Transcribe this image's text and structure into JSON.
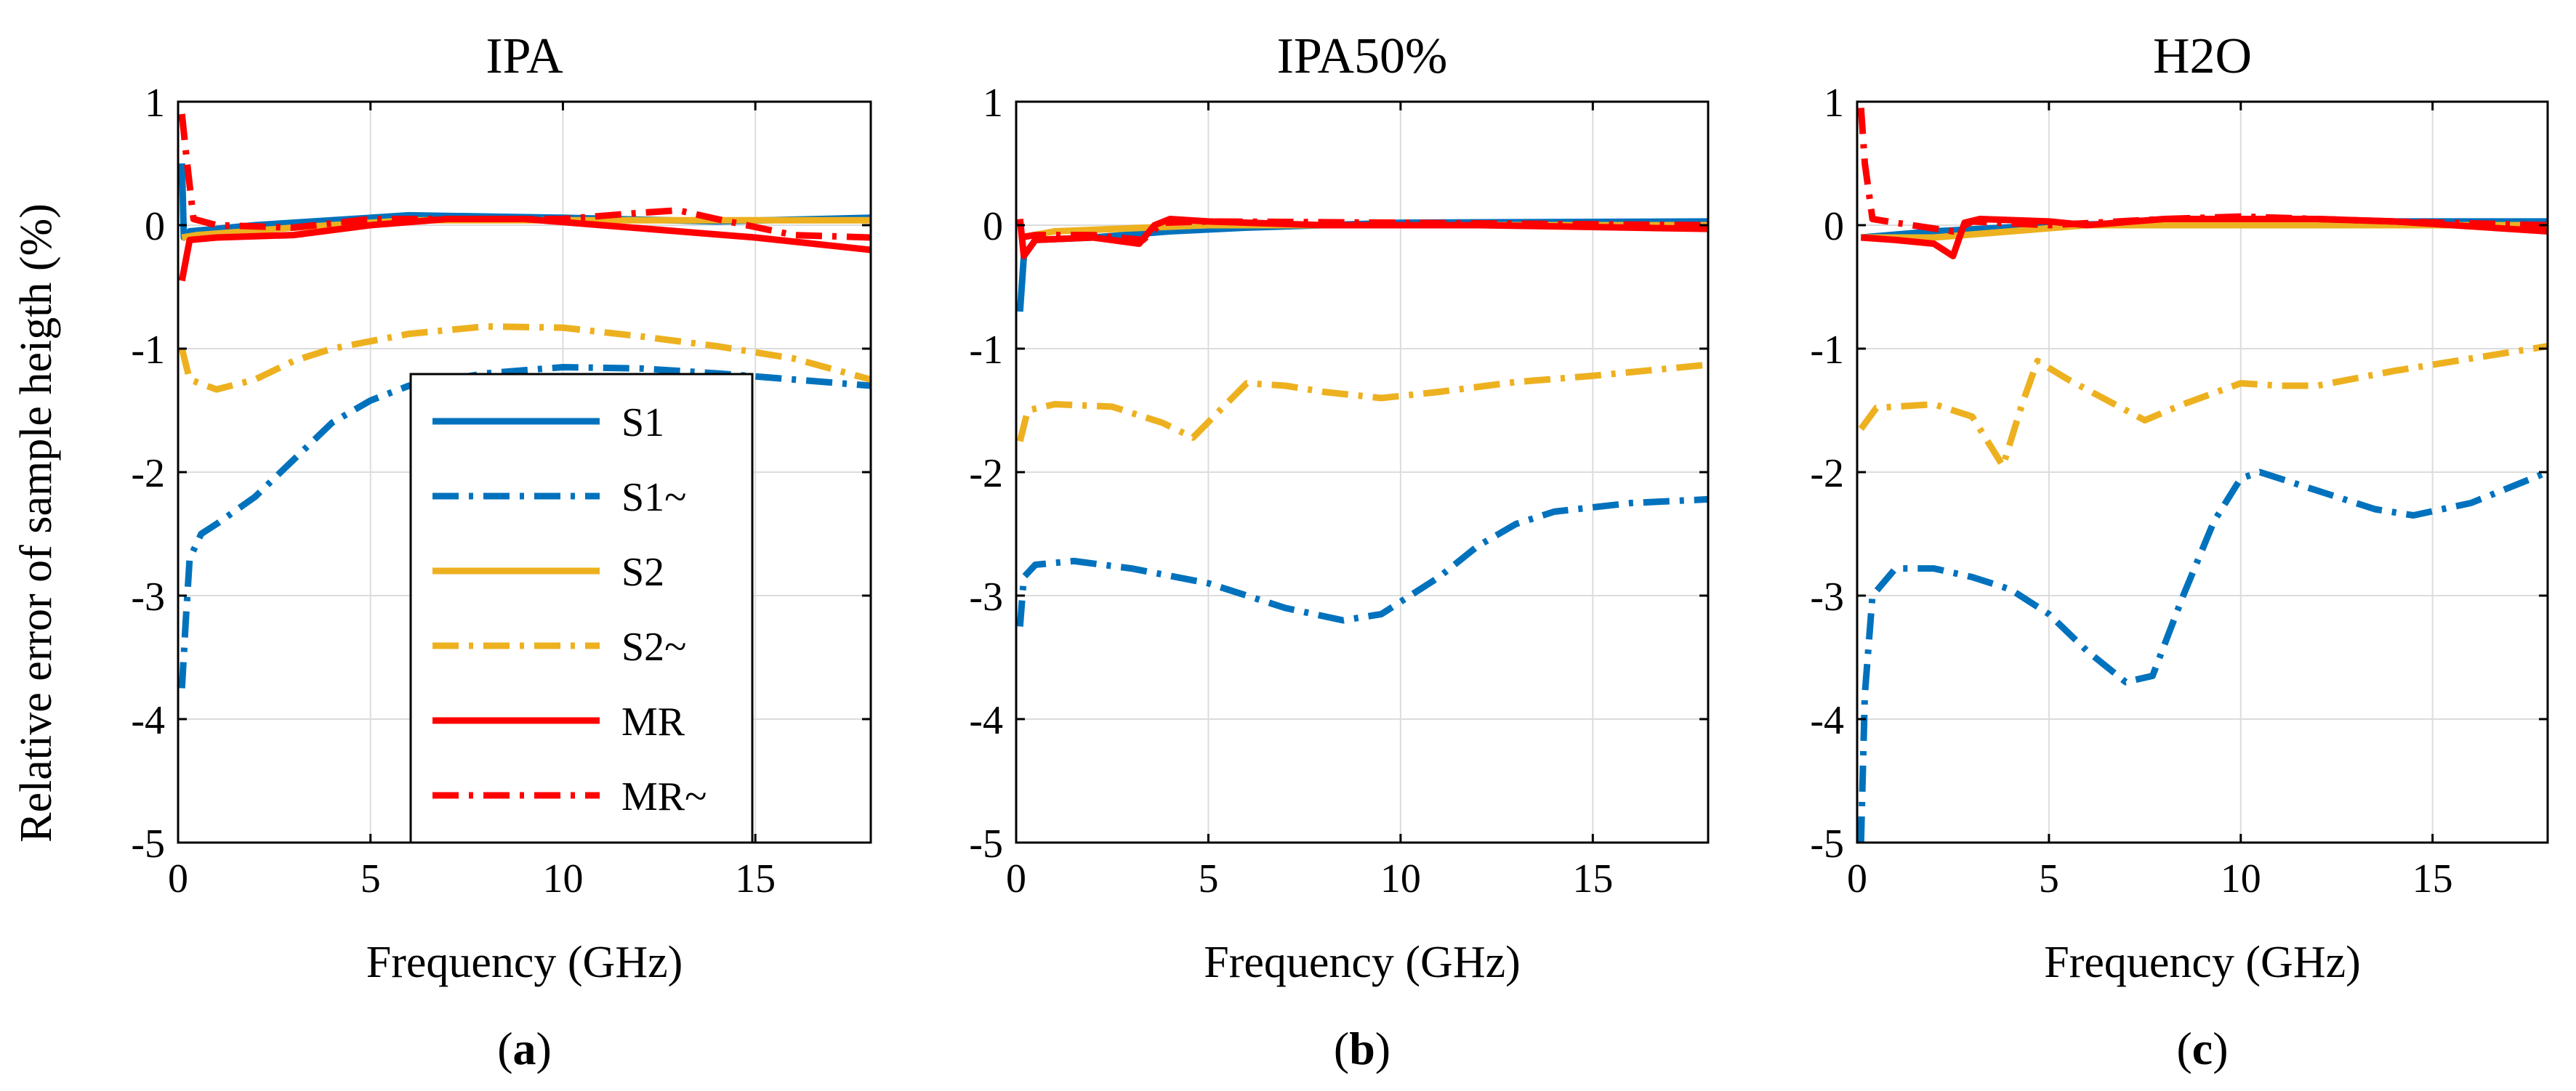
{
  "figure": {
    "ylabel": "Relative error of sample heigth (%)",
    "xlabel": "Frequency (GHz)"
  },
  "legend": {
    "location": "lower-center of panel (a)",
    "entries": [
      {
        "label": "S1",
        "color": "#0072BD",
        "dash": "solid"
      },
      {
        "label": "S1~",
        "color": "#0072BD",
        "dash": "dashdot"
      },
      {
        "label": "S2",
        "color": "#EDB120",
        "dash": "solid"
      },
      {
        "label": "S2~",
        "color": "#EDB120",
        "dash": "dashdot"
      },
      {
        "label": "MR",
        "color": "#FF0000",
        "dash": "solid"
      },
      {
        "label": "MR~",
        "color": "#FF0000",
        "dash": "dashdot"
      }
    ]
  },
  "chart_data": [
    {
      "type": "line",
      "title": "IPA",
      "caption": "a",
      "xlabel": "Frequency (GHz)",
      "ylabel": "Relative error of sample heigth (%)",
      "xlim": [
        0,
        18
      ],
      "ylim": [
        -5,
        1
      ],
      "xticks": [
        0,
        5,
        10,
        15
      ],
      "yticks": [
        1,
        0,
        -1,
        -2,
        -3,
        -4,
        -5
      ],
      "grid": true,
      "series": [
        {
          "name": "S1",
          "color": "#0072BD",
          "dash": "solid",
          "points": [
            [
              0.1,
              0.5
            ],
            [
              0.15,
              -0.1
            ],
            [
              0.3,
              -0.05
            ],
            [
              2,
              0.0
            ],
            [
              6,
              0.08
            ],
            [
              10,
              0.06
            ],
            [
              14,
              0.03
            ],
            [
              18,
              0.06
            ]
          ]
        },
        {
          "name": "S1~",
          "color": "#0072BD",
          "dash": "dashdot",
          "points": [
            [
              0.1,
              -3.75
            ],
            [
              0.2,
              -3.2
            ],
            [
              0.3,
              -2.7
            ],
            [
              0.6,
              -2.5
            ],
            [
              1,
              -2.42
            ],
            [
              2,
              -2.2
            ],
            [
              3,
              -1.9
            ],
            [
              4,
              -1.6
            ],
            [
              5,
              -1.42
            ],
            [
              6,
              -1.3
            ],
            [
              8,
              -1.2
            ],
            [
              10,
              -1.15
            ],
            [
              12,
              -1.16
            ],
            [
              14,
              -1.2
            ],
            [
              16,
              -1.25
            ],
            [
              18,
              -1.3
            ]
          ]
        },
        {
          "name": "S2",
          "color": "#EDB120",
          "dash": "solid",
          "points": [
            [
              0.1,
              -0.1
            ],
            [
              0.5,
              -0.08
            ],
            [
              3,
              -0.02
            ],
            [
              6,
              0.04
            ],
            [
              10,
              0.04
            ],
            [
              14,
              0.04
            ],
            [
              18,
              0.04
            ]
          ]
        },
        {
          "name": "S2~",
          "color": "#EDB120",
          "dash": "dashdot",
          "points": [
            [
              0.1,
              -1.0
            ],
            [
              0.3,
              -1.25
            ],
            [
              1,
              -1.33
            ],
            [
              2,
              -1.25
            ],
            [
              3,
              -1.1
            ],
            [
              4,
              -1.0
            ],
            [
              6,
              -0.88
            ],
            [
              8,
              -0.82
            ],
            [
              10,
              -0.83
            ],
            [
              12,
              -0.9
            ],
            [
              14,
              -0.98
            ],
            [
              16,
              -1.08
            ],
            [
              18,
              -1.25
            ]
          ]
        },
        {
          "name": "MR",
          "color": "#FF0000",
          "dash": "solid",
          "points": [
            [
              0.1,
              -0.45
            ],
            [
              0.3,
              -0.12
            ],
            [
              1,
              -0.1
            ],
            [
              3,
              -0.08
            ],
            [
              5,
              0.0
            ],
            [
              7,
              0.05
            ],
            [
              9,
              0.05
            ],
            [
              11,
              0.0
            ],
            [
              13,
              -0.05
            ],
            [
              15,
              -0.1
            ],
            [
              18,
              -0.2
            ]
          ]
        },
        {
          "name": "MR~",
          "color": "#FF0000",
          "dash": "dashdot",
          "points": [
            [
              0.1,
              0.9
            ],
            [
              0.2,
              0.6
            ],
            [
              0.4,
              0.05
            ],
            [
              1,
              0.0
            ],
            [
              3,
              -0.02
            ],
            [
              5,
              0.05
            ],
            [
              8,
              0.05
            ],
            [
              10,
              0.05
            ],
            [
              12,
              0.1
            ],
            [
              13,
              0.12
            ],
            [
              14,
              0.05
            ],
            [
              16,
              -0.08
            ],
            [
              18,
              -0.1
            ]
          ]
        }
      ]
    },
    {
      "type": "line",
      "title": "IPA50%",
      "caption": "b",
      "xlabel": "Frequency (GHz)",
      "ylabel": "",
      "xlim": [
        0,
        18
      ],
      "ylim": [
        -5,
        1
      ],
      "xticks": [
        0,
        5,
        10,
        15
      ],
      "yticks": [
        1,
        0,
        -1,
        -2,
        -3,
        -4,
        -5
      ],
      "grid": true,
      "series": [
        {
          "name": "S1",
          "color": "#0072BD",
          "dash": "solid",
          "points": [
            [
              0.1,
              -0.7
            ],
            [
              0.2,
              -0.25
            ],
            [
              0.5,
              -0.12
            ],
            [
              2,
              -0.1
            ],
            [
              4,
              -0.05
            ],
            [
              6,
              -0.02
            ],
            [
              10,
              0.02
            ],
            [
              18,
              0.03
            ]
          ]
        },
        {
          "name": "S1~",
          "color": "#0072BD",
          "dash": "dashdot",
          "points": [
            [
              0.1,
              -3.25
            ],
            [
              0.2,
              -2.85
            ],
            [
              0.5,
              -2.75
            ],
            [
              1.5,
              -2.72
            ],
            [
              3,
              -2.78
            ],
            [
              5,
              -2.9
            ],
            [
              7,
              -3.1
            ],
            [
              8.5,
              -3.2
            ],
            [
              9.5,
              -3.15
            ],
            [
              11,
              -2.85
            ],
            [
              12,
              -2.6
            ],
            [
              13,
              -2.42
            ],
            [
              14,
              -2.32
            ],
            [
              16,
              -2.25
            ],
            [
              18,
              -2.22
            ]
          ]
        },
        {
          "name": "S2",
          "color": "#EDB120",
          "dash": "solid",
          "points": [
            [
              0.1,
              -0.1
            ],
            [
              1,
              -0.05
            ],
            [
              5,
              0.0
            ],
            [
              10,
              0.0
            ],
            [
              18,
              0.0
            ]
          ]
        },
        {
          "name": "S2~",
          "color": "#EDB120",
          "dash": "dashdot",
          "points": [
            [
              0.1,
              -1.75
            ],
            [
              0.3,
              -1.5
            ],
            [
              1,
              -1.45
            ],
            [
              2.5,
              -1.47
            ],
            [
              3.8,
              -1.6
            ],
            [
              4.6,
              -1.72
            ],
            [
              5.3,
              -1.5
            ],
            [
              6,
              -1.28
            ],
            [
              7,
              -1.3
            ],
            [
              8,
              -1.35
            ],
            [
              9.5,
              -1.4
            ],
            [
              11,
              -1.35
            ],
            [
              13,
              -1.27
            ],
            [
              15,
              -1.22
            ],
            [
              18,
              -1.13
            ]
          ]
        },
        {
          "name": "MR",
          "color": "#FF0000",
          "dash": "solid",
          "points": [
            [
              0.1,
              0.05
            ],
            [
              0.2,
              -0.25
            ],
            [
              0.5,
              -0.12
            ],
            [
              2,
              -0.1
            ],
            [
              3.2,
              -0.15
            ],
            [
              3.6,
              0.0
            ],
            [
              4,
              0.05
            ],
            [
              5,
              0.03
            ],
            [
              8,
              0.0
            ],
            [
              12,
              0.0
            ],
            [
              18,
              -0.03
            ]
          ]
        },
        {
          "name": "MR~",
          "color": "#FF0000",
          "dash": "dashdot",
          "points": [
            [
              0.1,
              -0.1
            ],
            [
              0.5,
              -0.08
            ],
            [
              2,
              -0.08
            ],
            [
              3.3,
              -0.12
            ],
            [
              3.8,
              0.02
            ],
            [
              5,
              0.03
            ],
            [
              10,
              0.02
            ],
            [
              18,
              0.0
            ]
          ]
        }
      ]
    },
    {
      "type": "line",
      "title": "H2O",
      "caption": "c",
      "xlabel": "Frequency (GHz)",
      "ylabel": "",
      "xlim": [
        0,
        18
      ],
      "ylim": [
        -5,
        1
      ],
      "xticks": [
        0,
        5,
        10,
        15
      ],
      "yticks": [
        1,
        0,
        -1,
        -2,
        -3,
        -4,
        -5
      ],
      "grid": true,
      "series": [
        {
          "name": "S1",
          "color": "#0072BD",
          "dash": "solid",
          "points": [
            [
              0.1,
              -0.1
            ],
            [
              2,
              -0.05
            ],
            [
              5,
              0.0
            ],
            [
              10,
              0.03
            ],
            [
              18,
              0.03
            ]
          ]
        },
        {
          "name": "S1~",
          "color": "#0072BD",
          "dash": "dashdot",
          "points": [
            [
              0.1,
              -5.0
            ],
            [
              0.2,
              -3.8
            ],
            [
              0.4,
              -3.0
            ],
            [
              1,
              -2.78
            ],
            [
              2,
              -2.78
            ],
            [
              3,
              -2.85
            ],
            [
              4,
              -2.95
            ],
            [
              5,
              -3.15
            ],
            [
              6,
              -3.45
            ],
            [
              7,
              -3.7
            ],
            [
              7.7,
              -3.65
            ],
            [
              8.5,
              -3.0
            ],
            [
              9.3,
              -2.4
            ],
            [
              10,
              -2.05
            ],
            [
              10.5,
              -2.0
            ],
            [
              12,
              -2.15
            ],
            [
              13.5,
              -2.3
            ],
            [
              14.5,
              -2.35
            ],
            [
              16,
              -2.25
            ],
            [
              18,
              -2.0
            ]
          ]
        },
        {
          "name": "S2",
          "color": "#EDB120",
          "dash": "solid",
          "points": [
            [
              0.1,
              -0.1
            ],
            [
              2,
              -0.1
            ],
            [
              4,
              -0.05
            ],
            [
              6,
              0.0
            ],
            [
              10,
              0.0
            ],
            [
              18,
              0.0
            ]
          ]
        },
        {
          "name": "S2~",
          "color": "#EDB120",
          "dash": "dashdot",
          "points": [
            [
              0.1,
              -1.65
            ],
            [
              0.5,
              -1.48
            ],
            [
              2,
              -1.45
            ],
            [
              3,
              -1.55
            ],
            [
              3.8,
              -1.95
            ],
            [
              4.3,
              -1.45
            ],
            [
              4.7,
              -1.1
            ],
            [
              5.5,
              -1.25
            ],
            [
              7.5,
              -1.58
            ],
            [
              8.5,
              -1.45
            ],
            [
              10,
              -1.28
            ],
            [
              11,
              -1.3
            ],
            [
              12,
              -1.3
            ],
            [
              14,
              -1.18
            ],
            [
              16,
              -1.08
            ],
            [
              18,
              -0.98
            ]
          ]
        },
        {
          "name": "MR",
          "color": "#FF0000",
          "dash": "solid",
          "points": [
            [
              0.1,
              -0.1
            ],
            [
              1,
              -0.12
            ],
            [
              2,
              -0.15
            ],
            [
              2.5,
              -0.25
            ],
            [
              2.8,
              0.02
            ],
            [
              3.2,
              0.05
            ],
            [
              5,
              0.03
            ],
            [
              6,
              0.0
            ],
            [
              8,
              0.05
            ],
            [
              10,
              0.05
            ],
            [
              12,
              0.05
            ],
            [
              14,
              0.03
            ],
            [
              18,
              -0.05
            ]
          ]
        },
        {
          "name": "MR~",
          "color": "#FF0000",
          "dash": "dashdot",
          "points": [
            [
              0.1,
              0.95
            ],
            [
              0.2,
              0.5
            ],
            [
              0.4,
              0.05
            ],
            [
              1,
              0.02
            ],
            [
              2.5,
              -0.05
            ],
            [
              3,
              0.03
            ],
            [
              5,
              0.0
            ],
            [
              8,
              0.05
            ],
            [
              10,
              0.07
            ],
            [
              12,
              0.05
            ],
            [
              14,
              0.03
            ],
            [
              18,
              0.0
            ]
          ]
        }
      ]
    }
  ]
}
